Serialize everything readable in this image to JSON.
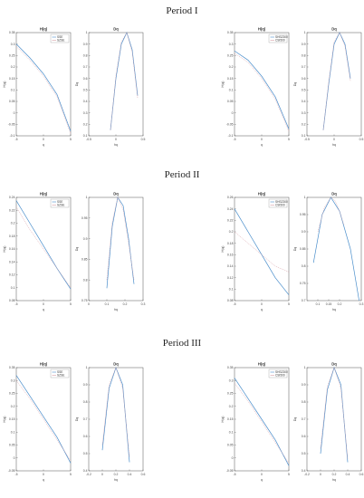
{
  "periods": [
    {
      "title": "Period I"
    },
    {
      "title": "Period II"
    },
    {
      "title": "Period III"
    }
  ],
  "colors": {
    "series1": "#4a8ecb",
    "series2": "#d9a0a8"
  },
  "chart_data": [
    {
      "type": "line",
      "panel": "p1-left-h",
      "title": "H(q)",
      "xlabel": "q",
      "ylabel": "H(q)",
      "xlim": [
        -5,
        5
      ],
      "ylim": [
        -0.1,
        0.35
      ],
      "xticks": [
        "-5",
        "0",
        "5"
      ],
      "yticks": [
        "-0.1",
        "-0.05",
        "0",
        "0.05",
        "0.1",
        "0.15",
        "0.2",
        "0.25",
        "0.3",
        "0.35"
      ],
      "legend": [
        "SSE",
        "SZSE"
      ],
      "series": [
        {
          "name": "SSE",
          "x": [
            -5,
            -2.5,
            0,
            2.5,
            5
          ],
          "y": [
            0.3,
            0.24,
            0.17,
            0.08,
            -0.08
          ]
        },
        {
          "name": "SZSE",
          "x": [
            -5,
            -2.5,
            0,
            2.5,
            5
          ],
          "y": [
            0.29,
            0.23,
            0.16,
            0.07,
            -0.09
          ]
        }
      ]
    },
    {
      "type": "line",
      "panel": "p1-left-d",
      "title": "Dq",
      "xlabel": "hq",
      "ylabel": "Dq",
      "xlim": [
        -0.5,
        0.5
      ],
      "ylim": [
        0.1,
        1
      ],
      "xticks": [
        "-0.5",
        "0",
        "0.5"
      ],
      "yticks": [
        "0.1",
        "0.2",
        "0.3",
        "0.4",
        "0.5",
        "0.6",
        "0.7",
        "0.8",
        "0.9",
        "1"
      ],
      "series": [
        {
          "name": "SSE",
          "x": [
            -0.1,
            0,
            0.1,
            0.2,
            0.3,
            0.4
          ],
          "y": [
            0.15,
            0.6,
            0.9,
            1,
            0.85,
            0.45
          ]
        },
        {
          "name": "SZSE",
          "x": [
            -0.1,
            0,
            0.1,
            0.2,
            0.3,
            0.4
          ],
          "y": [
            0.15,
            0.62,
            0.92,
            1,
            0.83,
            0.43
          ]
        }
      ]
    },
    {
      "type": "line",
      "panel": "p1-right-h",
      "title": "H(q)",
      "xlabel": "q",
      "ylabel": "H(q)",
      "xlim": [
        -5,
        5
      ],
      "ylim": [
        -0.1,
        0.35
      ],
      "xticks": [
        "-5",
        "0",
        "5"
      ],
      "yticks": [
        "-0.1",
        "-0.05",
        "0",
        "0.05",
        "0.1",
        "0.15",
        "0.2",
        "0.25",
        "0.3",
        "0.35"
      ],
      "legend": [
        "SHSZ300",
        "CSI500"
      ],
      "series": [
        {
          "name": "SHSZ300",
          "x": [
            -5,
            -2.5,
            0,
            2.5,
            5
          ],
          "y": [
            0.27,
            0.23,
            0.16,
            0.07,
            -0.07
          ]
        },
        {
          "name": "CSI500",
          "x": [
            -5,
            -2.5,
            0,
            2.5,
            5
          ],
          "y": [
            0.26,
            0.22,
            0.15,
            0.06,
            -0.08
          ]
        }
      ]
    },
    {
      "type": "line",
      "panel": "p1-right-d",
      "title": "Dq",
      "xlabel": "hq",
      "ylabel": "Dq",
      "xlim": [
        -0.5,
        0.5
      ],
      "ylim": [
        0.1,
        1
      ],
      "xticks": [
        "-0.5",
        "0",
        "0.5"
      ],
      "yticks": [
        "0.1",
        "0.2",
        "0.3",
        "0.4",
        "0.5",
        "0.6",
        "0.7",
        "0.8",
        "0.9",
        "1"
      ],
      "series": [
        {
          "name": "SHSZ300",
          "x": [
            -0.2,
            -0.1,
            0,
            0.1,
            0.2,
            0.3
          ],
          "y": [
            0.15,
            0.55,
            0.9,
            1,
            0.9,
            0.6
          ]
        },
        {
          "name": "CSI500",
          "x": [
            -0.2,
            -0.1,
            0,
            0.1,
            0.2,
            0.3
          ],
          "y": [
            0.15,
            0.57,
            0.92,
            1,
            0.88,
            0.58
          ]
        }
      ]
    },
    {
      "type": "line",
      "panel": "p2-left-h",
      "title": "H(q)",
      "xlabel": "q",
      "ylabel": "H(q)",
      "xlim": [
        -5,
        5
      ],
      "ylim": [
        0.08,
        0.24
      ],
      "xticks": [
        "-5",
        "0",
        "5"
      ],
      "yticks": [
        "0.08",
        "0.1",
        "0.12",
        "0.14",
        "0.16",
        "0.18",
        "0.2",
        "0.22",
        "0.24"
      ],
      "legend": [
        "SSE",
        "SZSE"
      ],
      "series": [
        {
          "name": "SSE",
          "x": [
            -5,
            -2.5,
            0,
            2.5,
            5
          ],
          "y": [
            0.235,
            0.2,
            0.165,
            0.13,
            0.098
          ]
        },
        {
          "name": "SZSE",
          "x": [
            -5,
            -2.5,
            0,
            2.5,
            5
          ],
          "y": [
            0.225,
            0.19,
            0.16,
            0.13,
            0.1
          ]
        }
      ]
    },
    {
      "type": "line",
      "panel": "p2-left-d",
      "title": "Dq",
      "xlabel": "hq",
      "ylabel": "Dq",
      "xlim": [
        0,
        0.3
      ],
      "ylim": [
        0.75,
        1
      ],
      "xticks": [
        "0",
        "0.1",
        "0.2",
        "0.3"
      ],
      "yticks": [
        "0.75",
        "0.8",
        "0.85",
        "0.9",
        "0.95",
        "1"
      ],
      "series": [
        {
          "name": "SSE",
          "x": [
            0.1,
            0.13,
            0.16,
            0.19,
            0.22,
            0.25
          ],
          "y": [
            0.78,
            0.93,
            1,
            0.98,
            0.9,
            0.79
          ]
        },
        {
          "name": "SZSE",
          "x": [
            0.1,
            0.13,
            0.16,
            0.19,
            0.22,
            0.25
          ],
          "y": [
            0.8,
            0.94,
            1,
            0.97,
            0.89,
            0.8
          ]
        }
      ]
    },
    {
      "type": "line",
      "panel": "p2-right-h",
      "title": "H(q)",
      "xlabel": "q",
      "ylabel": "H(q)",
      "xlim": [
        -5,
        5
      ],
      "ylim": [
        0.08,
        0.26
      ],
      "xticks": [
        "-5",
        "0",
        "5"
      ],
      "yticks": [
        "0.08",
        "0.1",
        "0.12",
        "0.14",
        "0.16",
        "0.18",
        "0.2",
        "0.22",
        "0.24",
        "0.26"
      ],
      "legend": [
        "SHSZ300",
        "CSI500"
      ],
      "series": [
        {
          "name": "SHSZ300",
          "x": [
            -5,
            -2.5,
            0,
            2.5,
            5
          ],
          "y": [
            0.24,
            0.2,
            0.16,
            0.12,
            0.09
          ]
        },
        {
          "name": "CSI500",
          "x": [
            -5,
            -2.5,
            0,
            2.5,
            5
          ],
          "y": [
            0.2,
            0.18,
            0.16,
            0.14,
            0.13
          ]
        }
      ]
    },
    {
      "type": "line",
      "panel": "p2-right-d",
      "title": "Dq",
      "xlabel": "hq",
      "ylabel": "Dq",
      "xlim": [
        0.05,
        0.3
      ],
      "ylim": [
        0.7,
        1
      ],
      "xticks": [
        "0.1",
        "0.15",
        "0.2",
        "0.3"
      ],
      "yticks": [
        "0.7",
        "0.75",
        "0.8",
        "0.85",
        "0.9",
        "0.95",
        "1"
      ],
      "series": [
        {
          "name": "SHSZ300",
          "x": [
            0.08,
            0.12,
            0.16,
            0.2,
            0.25,
            0.29
          ],
          "y": [
            0.81,
            0.95,
            1,
            0.96,
            0.85,
            0.7
          ]
        },
        {
          "name": "CSI500",
          "x": [
            0.1,
            0.13,
            0.16,
            0.18,
            0.2,
            0.22
          ],
          "y": [
            0.9,
            0.97,
            1,
            0.99,
            0.96,
            0.92
          ]
        }
      ]
    },
    {
      "type": "line",
      "panel": "p3-left-h",
      "title": "H(q)",
      "xlabel": "q",
      "ylabel": "H(q)",
      "xlim": [
        -5,
        5
      ],
      "ylim": [
        -0.05,
        0.35
      ],
      "xticks": [
        "-5",
        "0",
        "5"
      ],
      "yticks": [
        "-0.05",
        "0",
        "0.05",
        "0.1",
        "0.15",
        "0.2",
        "0.25",
        "0.3",
        "0.35"
      ],
      "legend": [
        "SSE",
        "SZSE"
      ],
      "series": [
        {
          "name": "SSE",
          "x": [
            -5,
            -2.5,
            0,
            2.5,
            5
          ],
          "y": [
            0.32,
            0.24,
            0.16,
            0.08,
            -0.02
          ]
        },
        {
          "name": "SZSE",
          "x": [
            -5,
            -2.5,
            0,
            2.5,
            5
          ],
          "y": [
            0.3,
            0.23,
            0.15,
            0.07,
            -0.01
          ]
        }
      ]
    },
    {
      "type": "line",
      "panel": "p3-left-d",
      "title": "Dq",
      "xlabel": "hq",
      "ylabel": "Dq",
      "xlim": [
        -0.2,
        0.6
      ],
      "ylim": [
        0.4,
        1
      ],
      "xticks": [
        "-0.2",
        "0",
        "0.2",
        "0.4",
        "0.6"
      ],
      "yticks": [
        "0.4",
        "0.5",
        "0.6",
        "0.7",
        "0.8",
        "0.9",
        "1"
      ],
      "series": [
        {
          "name": "SSE",
          "x": [
            0,
            0.1,
            0.2,
            0.3,
            0.4
          ],
          "y": [
            0.52,
            0.88,
            1,
            0.9,
            0.45
          ]
        },
        {
          "name": "SZSE",
          "x": [
            0,
            0.1,
            0.2,
            0.3,
            0.4
          ],
          "y": [
            0.55,
            0.9,
            1,
            0.88,
            0.48
          ]
        }
      ]
    },
    {
      "type": "line",
      "panel": "p3-right-h",
      "title": "H(q)",
      "xlabel": "q",
      "ylabel": "H(q)",
      "xlim": [
        -5,
        5
      ],
      "ylim": [
        -0.05,
        0.35
      ],
      "xticks": [
        "-5",
        "0",
        "5"
      ],
      "yticks": [
        "-0.05",
        "0",
        "0.05",
        "0.1",
        "0.15",
        "0.2",
        "0.25",
        "0.3",
        "0.35"
      ],
      "legend": [
        "SHSZ300",
        "CSI500"
      ],
      "series": [
        {
          "name": "SHSZ300",
          "x": [
            -5,
            -2.5,
            0,
            2.5,
            5
          ],
          "y": [
            0.31,
            0.23,
            0.15,
            0.07,
            -0.03
          ]
        },
        {
          "name": "CSI500",
          "x": [
            -5,
            -2.5,
            0,
            2.5,
            5
          ],
          "y": [
            0.29,
            0.22,
            0.14,
            0.06,
            -0.02
          ]
        }
      ]
    },
    {
      "type": "line",
      "panel": "p3-right-d",
      "title": "Dq",
      "xlabel": "hq",
      "ylabel": "Dq",
      "xlim": [
        -0.2,
        0.6
      ],
      "ylim": [
        0.4,
        1
      ],
      "xticks": [
        "-0.2",
        "0",
        "0.2",
        "0.4",
        "0.6"
      ],
      "yticks": [
        "0.4",
        "0.5",
        "0.6",
        "0.7",
        "0.8",
        "0.9",
        "1"
      ],
      "series": [
        {
          "name": "SHSZ300",
          "x": [
            0,
            0.1,
            0.2,
            0.3,
            0.4
          ],
          "y": [
            0.5,
            0.87,
            1,
            0.9,
            0.45
          ]
        },
        {
          "name": "CSI500",
          "x": [
            0,
            0.1,
            0.2,
            0.3,
            0.4
          ],
          "y": [
            0.53,
            0.89,
            1,
            0.88,
            0.47
          ]
        }
      ]
    }
  ]
}
